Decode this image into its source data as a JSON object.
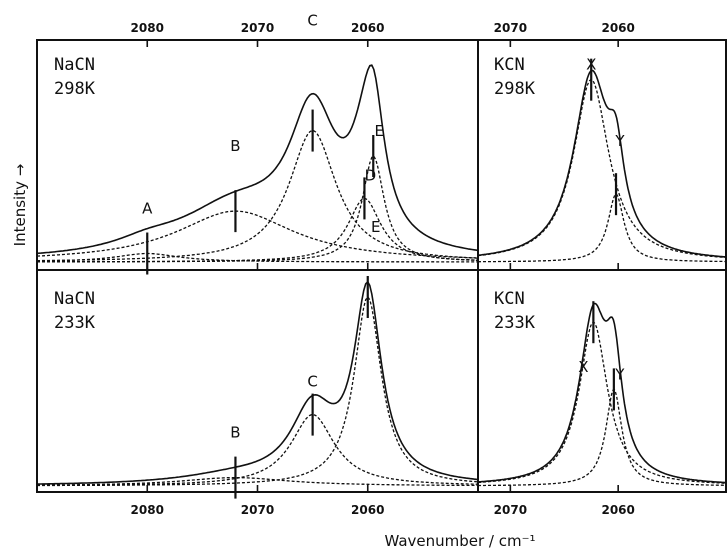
{
  "chart_data": {
    "type": "line",
    "xlabel": "Wavenumber / cm⁻¹",
    "ylabel": "Intensity →",
    "panels": [
      {
        "id": "nacn-298",
        "compound": "NaCN",
        "temperature": "298K",
        "xlim": [
          2090,
          2050
        ],
        "xticks": [
          2080,
          2070,
          2060
        ],
        "ylim": [
          0,
          1
        ],
        "components": [
          {
            "label": "A",
            "center": 2080,
            "height": 0.04,
            "width": 3.5
          },
          {
            "label": "B",
            "center": 2072,
            "height": 0.24,
            "width": 6.5
          },
          {
            "label": "C",
            "center": 2065,
            "height": 0.62,
            "width": 2.6
          },
          {
            "label": "D",
            "center": 2060.3,
            "height": 0.3,
            "width": 1.8
          },
          {
            "label": "E",
            "center": 2059.5,
            "height": 0.5,
            "width": 1.2
          }
        ]
      },
      {
        "id": "nacn-233",
        "compound": "NaCN",
        "temperature": "233K",
        "xlim": [
          2090,
          2050
        ],
        "xticks": [
          2080,
          2070,
          2060
        ],
        "ylim": [
          0,
          1
        ],
        "components": [
          {
            "label": "B",
            "center": 2072,
            "height": 0.04,
            "width": 6
          },
          {
            "label": "C",
            "center": 2065,
            "height": 0.34,
            "width": 2.4
          },
          {
            "label": "E",
            "center": 2060,
            "height": 0.9,
            "width": 1.5
          }
        ]
      },
      {
        "id": "kcn-298",
        "compound": "KCN",
        "temperature": "298K",
        "xlim": [
          2073,
          2050
        ],
        "xticks": [
          2070,
          2060
        ],
        "ylim": [
          0,
          1
        ],
        "components": [
          {
            "label": "X",
            "center": 2062.5,
            "height": 0.86,
            "width": 2.0
          },
          {
            "label": "Y",
            "center": 2060.2,
            "height": 0.32,
            "width": 0.9
          }
        ]
      },
      {
        "id": "kcn-233",
        "compound": "KCN",
        "temperature": "233K",
        "xlim": [
          2073,
          2050
        ],
        "xticks": [
          2070,
          2060
        ],
        "ylim": [
          0,
          1
        ],
        "components": [
          {
            "label": "X",
            "center": 2062.3,
            "height": 0.78,
            "width": 1.6
          },
          {
            "label": "Y",
            "center": 2060.4,
            "height": 0.46,
            "width": 0.9
          }
        ]
      }
    ]
  }
}
